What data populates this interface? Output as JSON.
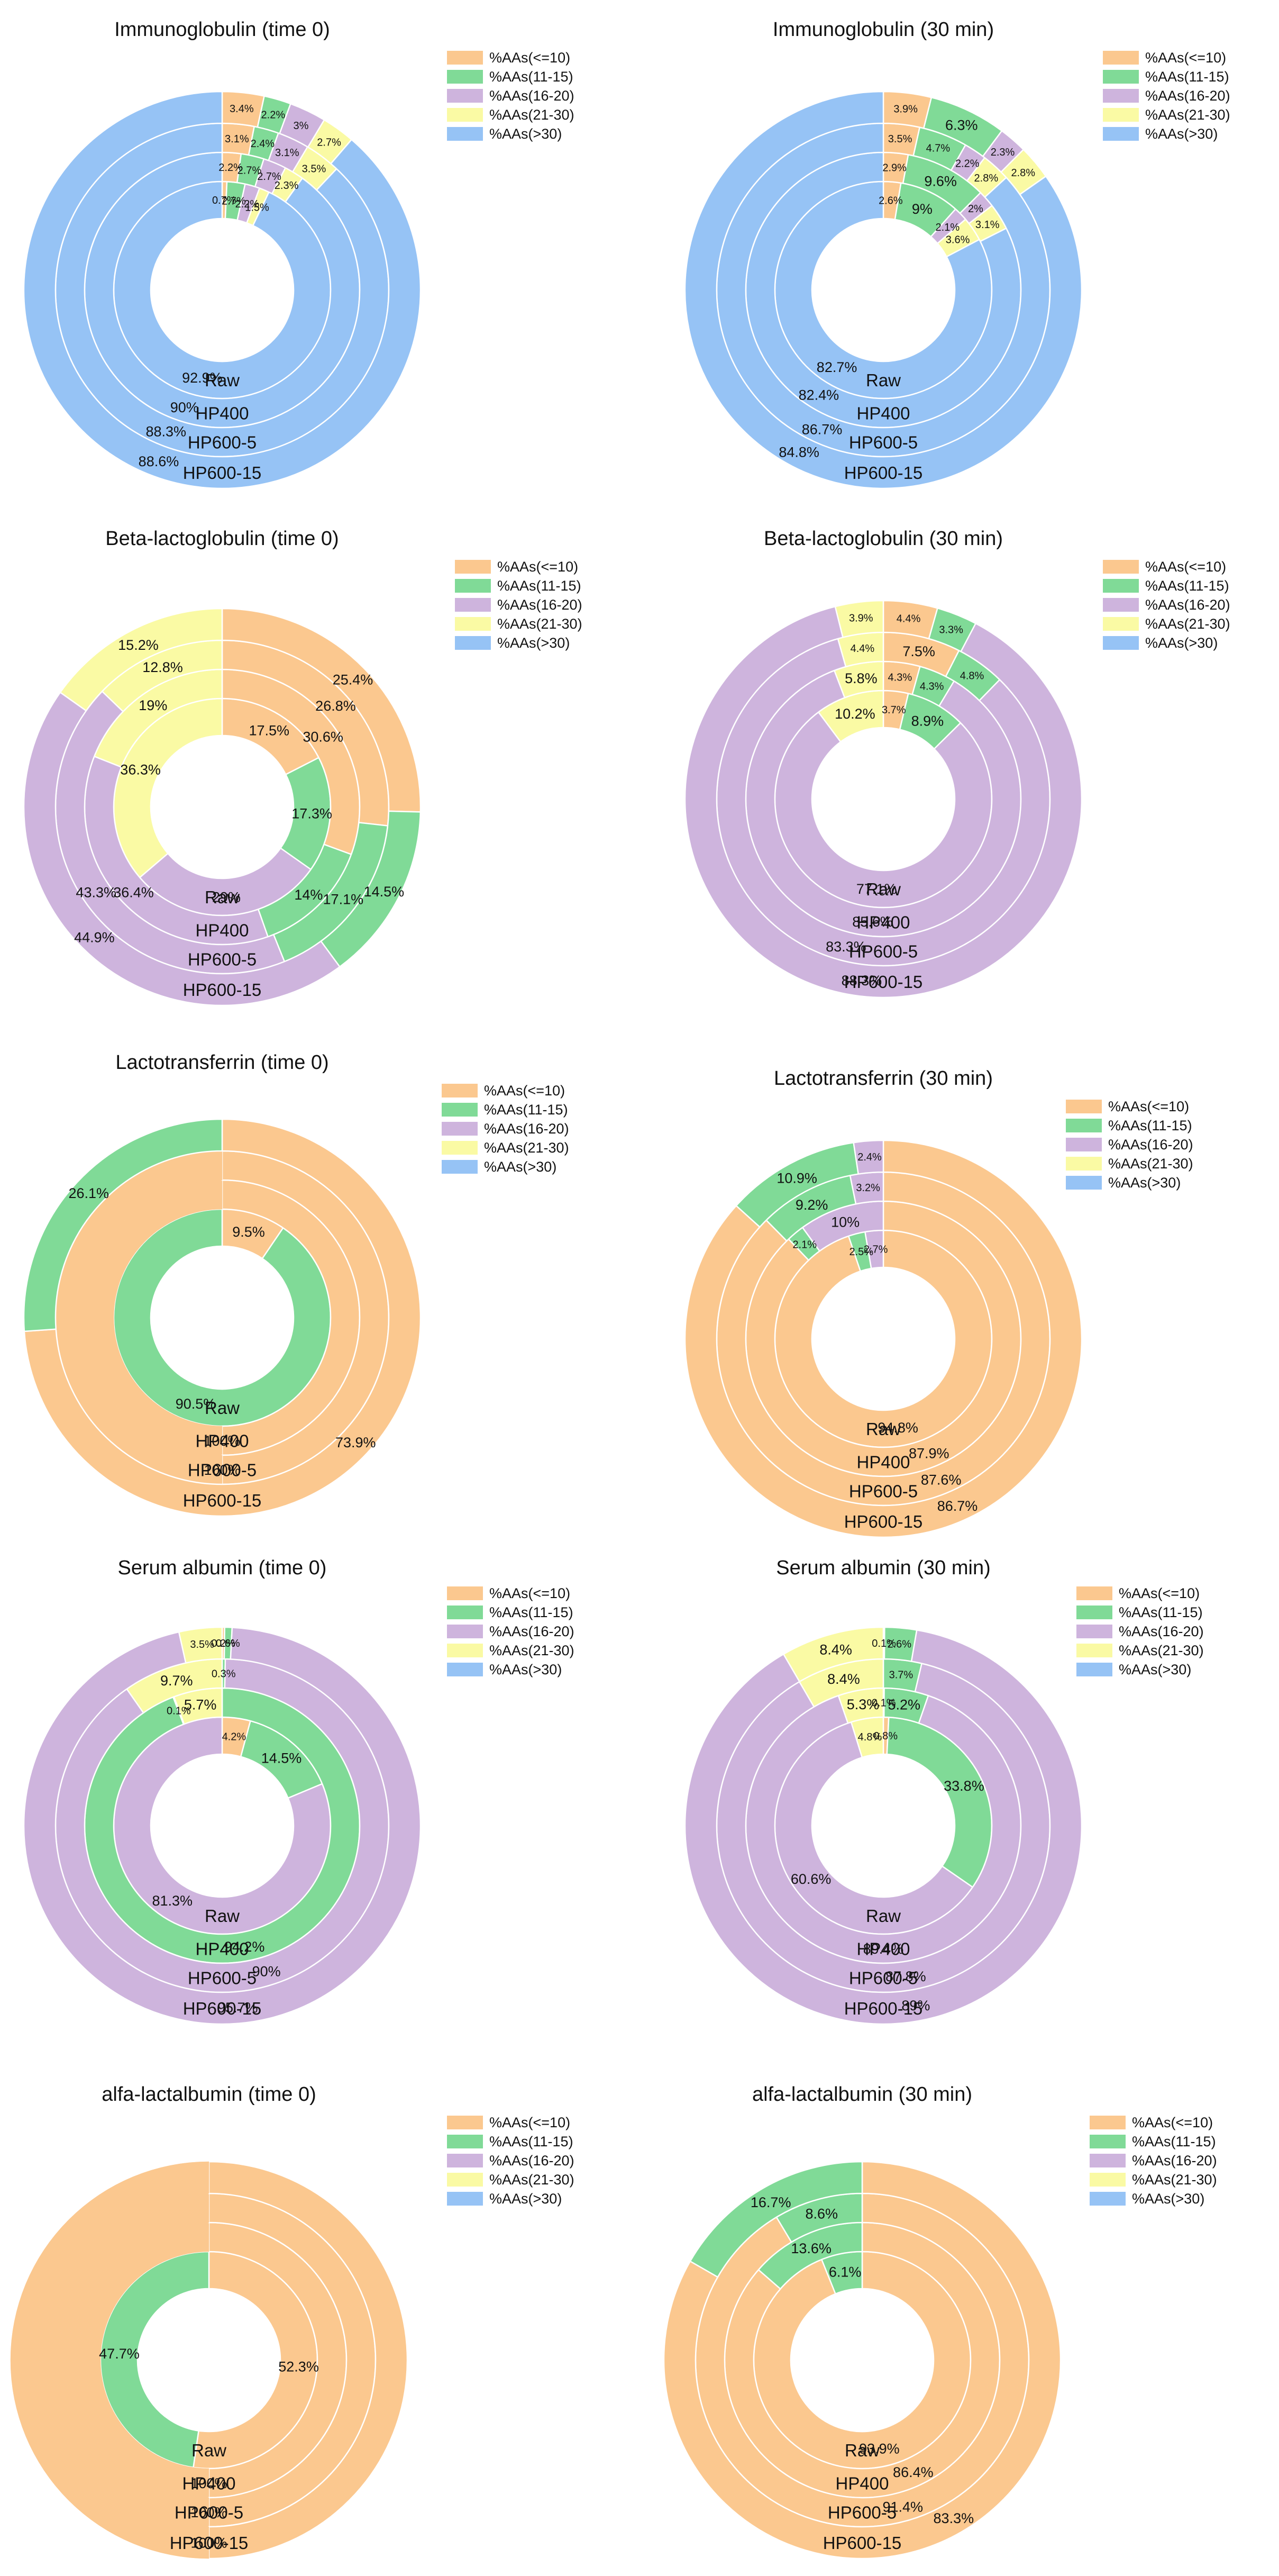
{
  "chart_data": [
    {
      "type": "pie",
      "title": "Immunoglobulin (time 0)",
      "rings": [
        "Raw",
        "HP400",
        "HP600-5",
        "HP600-15"
      ],
      "categories": [
        "%AAs(<=10)",
        "%AAs(11-15)",
        "%AAs(16-20)",
        "%AAs(21-30)",
        "%AAs(>30)"
      ],
      "series": [
        {
          "name": "Raw",
          "values": [
            0.7,
            2.7,
            2.2,
            1.5,
            92.9
          ],
          "labels": [
            "0.7%",
            "2.7%",
            "2.2%",
            "1.5%",
            "92.9%"
          ]
        },
        {
          "name": "HP400",
          "values": [
            2.2,
            2.7,
            2.7,
            2.3,
            90.0
          ],
          "labels": [
            "2.2%",
            "2.7%",
            "2.7%",
            "2.3%",
            "90%"
          ]
        },
        {
          "name": "HP600-5",
          "values": [
            3.1,
            2.4,
            3.1,
            3.5,
            88.3
          ],
          "labels": [
            "3.1%",
            "2.4%",
            "3.1%",
            "3.5%",
            "88.3%"
          ]
        },
        {
          "name": "HP600-15",
          "values": [
            3.4,
            2.2,
            3.0,
            2.7,
            88.6
          ],
          "labels": [
            "3.4%",
            "2.2%",
            "3%",
            "2.7%",
            "88.6%"
          ]
        }
      ]
    },
    {
      "type": "pie",
      "title": "Immunoglobulin (30 min)",
      "rings": [
        "Raw",
        "HP400",
        "HP600-5",
        "HP600-15"
      ],
      "categories": [
        "%AAs(<=10)",
        "%AAs(11-15)",
        "%AAs(16-20)",
        "%AAs(21-30)",
        "%AAs(>30)"
      ],
      "series": [
        {
          "name": "Raw",
          "values": [
            2.6,
            9.0,
            2.1,
            3.6,
            82.7
          ],
          "labels": [
            "2.6%",
            "9%",
            "2.1%",
            "3.6%",
            "82.7%"
          ]
        },
        {
          "name": "HP400",
          "values": [
            2.9,
            9.6,
            2.0,
            3.1,
            82.4
          ],
          "labels": [
            "2.9%",
            "9.6%",
            "2%",
            "3.1%",
            "82.4%"
          ]
        },
        {
          "name": "HP600-5",
          "values": [
            3.5,
            4.7,
            2.2,
            2.8,
            86.7
          ],
          "labels": [
            "3.5%",
            "4.7%",
            "2.2%",
            "2.8%",
            "86.7%"
          ]
        },
        {
          "name": "HP600-15",
          "values": [
            3.9,
            6.3,
            2.3,
            2.8,
            84.8
          ],
          "labels": [
            "3.9%",
            "6.3%",
            "2.3%",
            "2.8%",
            "84.8%"
          ]
        }
      ]
    },
    {
      "type": "pie",
      "title": "Beta-lactoglobulin (time 0)",
      "rings": [
        "Raw",
        "HP400",
        "HP600-5",
        "HP600-15"
      ],
      "categories": [
        "%AAs(<=10)",
        "%AAs(11-15)",
        "%AAs(16-20)",
        "%AAs(21-30)",
        "%AAs(>30)"
      ],
      "series": [
        {
          "name": "Raw",
          "values": [
            17.5,
            17.3,
            29.0,
            36.3,
            0
          ],
          "labels": [
            "17.5%",
            "17.3%",
            "29%",
            "36.3%",
            ""
          ]
        },
        {
          "name": "HP400",
          "values": [
            30.6,
            14.0,
            36.4,
            19.0,
            0
          ],
          "labels": [
            "30.6%",
            "14%",
            "36.4%",
            "19%",
            ""
          ]
        },
        {
          "name": "HP600-5",
          "values": [
            26.8,
            17.1,
            43.3,
            12.8,
            0
          ],
          "labels": [
            "26.8%",
            "17.1%",
            "43.3%",
            "12.8%",
            ""
          ]
        },
        {
          "name": "HP600-15",
          "values": [
            25.4,
            14.5,
            44.9,
            15.2,
            0
          ],
          "labels": [
            "25.4%",
            "14.5%",
            "44.9%",
            "15.2%",
            ""
          ]
        }
      ]
    },
    {
      "type": "pie",
      "title": "Beta-lactoglobulin (30 min)",
      "rings": [
        "Raw",
        "HP400",
        "HP600-5",
        "HP600-15"
      ],
      "categories": [
        "%AAs(<=10)",
        "%AAs(11-15)",
        "%AAs(16-20)",
        "%AAs(21-30)",
        "%AAs(>30)"
      ],
      "series": [
        {
          "name": "Raw",
          "values": [
            3.7,
            8.9,
            77.1,
            10.2,
            0
          ],
          "labels": [
            "3.7%",
            "8.9%",
            "77.1%",
            "10.2%",
            ""
          ]
        },
        {
          "name": "HP400",
          "values": [
            4.3,
            4.3,
            85.6,
            5.8,
            0
          ],
          "labels": [
            "4.3%",
            "4.3%",
            "85.6%",
            "5.8%",
            ""
          ]
        },
        {
          "name": "HP600-5",
          "values": [
            7.5,
            4.8,
            83.3,
            4.4,
            0
          ],
          "labels": [
            "7.5%",
            "4.8%",
            "83.3%",
            "4.4%",
            ""
          ]
        },
        {
          "name": "HP600-15",
          "values": [
            4.4,
            3.3,
            88.3,
            3.9,
            0
          ],
          "labels": [
            "4.4%",
            "3.3%",
            "88.3%",
            "3.9%",
            ""
          ]
        }
      ]
    },
    {
      "type": "pie",
      "title": "Lactotransferrin (time 0)",
      "rings": [
        "Raw",
        "HP400",
        "HP600-5",
        "HP600-15"
      ],
      "categories": [
        "%AAs(<=10)",
        "%AAs(11-15)",
        "%AAs(16-20)",
        "%AAs(21-30)",
        "%AAs(>30)"
      ],
      "series": [
        {
          "name": "Raw",
          "values": [
            9.5,
            90.5,
            0,
            0,
            0
          ],
          "labels": [
            "9.5%",
            "90.5%",
            "",
            "",
            ""
          ]
        },
        {
          "name": "HP400",
          "values": [
            100,
            0,
            0,
            0,
            0
          ],
          "labels": [
            "100%",
            "",
            "",
            "",
            ""
          ]
        },
        {
          "name": "HP600-5",
          "values": [
            100,
            0,
            0,
            0,
            0
          ],
          "labels": [
            "100%",
            "",
            "",
            "",
            ""
          ]
        },
        {
          "name": "HP600-15",
          "values": [
            73.9,
            26.1,
            0,
            0,
            0
          ],
          "labels": [
            "73.9%",
            "26.1%",
            "",
            "",
            ""
          ]
        }
      ]
    },
    {
      "type": "pie",
      "title": "Lactotransferrin (30 min)",
      "rings": [
        "Raw",
        "HP400",
        "HP600-5",
        "HP600-15"
      ],
      "categories": [
        "%AAs(<=10)",
        "%AAs(11-15)",
        "%AAs(16-20)",
        "%AAs(21-30)",
        "%AAs(>30)"
      ],
      "series": [
        {
          "name": "Raw",
          "values": [
            94.8,
            2.5,
            2.7,
            0,
            0
          ],
          "labels": [
            "94.8%",
            "2.5%",
            "2.7%",
            "",
            ""
          ]
        },
        {
          "name": "HP400",
          "values": [
            87.9,
            2.1,
            10.0,
            0,
            0
          ],
          "labels": [
            "87.9%",
            "2.1%",
            "10%",
            "",
            ""
          ]
        },
        {
          "name": "HP600-5",
          "values": [
            87.6,
            9.2,
            3.2,
            0,
            0
          ],
          "labels": [
            "87.6%",
            "9.2%",
            "3.2%",
            "",
            ""
          ]
        },
        {
          "name": "HP600-15",
          "values": [
            86.7,
            10.9,
            2.4,
            0,
            0
          ],
          "labels": [
            "86.7%",
            "10.9%",
            "2.4%",
            "",
            ""
          ]
        }
      ]
    },
    {
      "type": "pie",
      "title": "Serum albumin (time 0)",
      "rings": [
        "Raw",
        "HP400",
        "HP600-5",
        "HP600-15"
      ],
      "categories": [
        "%AAs(<=10)",
        "%AAs(11-15)",
        "%AAs(16-20)",
        "%AAs(21-30)",
        "%AAs(>30)"
      ],
      "series": [
        {
          "name": "Raw",
          "values": [
            4.2,
            14.5,
            81.3,
            0,
            0
          ],
          "labels": [
            "4.2%",
            "14.5%",
            "81.3%",
            "",
            ""
          ]
        },
        {
          "name": "HP400",
          "values": [
            0,
            94.2,
            0.1,
            5.7,
            0
          ],
          "labels": [
            "",
            "94.2%",
            "0.1%",
            "5.7%",
            ""
          ]
        },
        {
          "name": "HP600-5",
          "values": [
            0,
            0.3,
            90.0,
            9.7,
            0
          ],
          "labels": [
            "",
            "0.3%",
            "90%",
            "9.7%",
            ""
          ]
        },
        {
          "name": "HP600-15",
          "values": [
            0.2,
            0.6,
            95.7,
            3.5,
            0
          ],
          "labels": [
            "0.2%",
            "0.6%",
            "95.7%",
            "3.5%",
            ""
          ]
        }
      ]
    },
    {
      "type": "pie",
      "title": "Serum albumin (30 min)",
      "rings": [
        "Raw",
        "HP400",
        "HP600-5",
        "HP600-15"
      ],
      "categories": [
        "%AAs(<=10)",
        "%AAs(11-15)",
        "%AAs(16-20)",
        "%AAs(21-30)",
        "%AAs(>30)"
      ],
      "series": [
        {
          "name": "Raw",
          "values": [
            0.8,
            33.8,
            60.6,
            4.8,
            0
          ],
          "labels": [
            "0.8%",
            "33.8%",
            "60.6%",
            "4.8%",
            ""
          ]
        },
        {
          "name": "HP400",
          "values": [
            0.1,
            5.2,
            89.4,
            5.3,
            0
          ],
          "labels": [
            "0.1%",
            "5.2%",
            "89.4%",
            "5.3%",
            ""
          ]
        },
        {
          "name": "HP600-5",
          "values": [
            0,
            3.7,
            87.8,
            8.4,
            0
          ],
          "labels": [
            "",
            "3.7%",
            "87.8%",
            "8.4%",
            ""
          ]
        },
        {
          "name": "HP600-15",
          "values": [
            0.1,
            2.6,
            89.0,
            8.4,
            0
          ],
          "labels": [
            "0.1%",
            "2.6%",
            "89%",
            "8.4%",
            ""
          ]
        }
      ]
    },
    {
      "type": "pie",
      "title": "alfa-lactalbumin (time 0)",
      "rings": [
        "Raw",
        "HP400",
        "HP600-5",
        "HP600-15"
      ],
      "categories": [
        "%AAs(<=10)",
        "%AAs(11-15)",
        "%AAs(16-20)",
        "%AAs(21-30)",
        "%AAs(>30)"
      ],
      "series": [
        {
          "name": "Raw",
          "values": [
            52.3,
            47.7,
            0,
            0,
            0
          ],
          "labels": [
            "52.3%",
            "47.7%",
            "",
            "",
            ""
          ]
        },
        {
          "name": "HP400",
          "values": [
            100,
            0,
            0,
            0,
            0
          ],
          "labels": [
            "100%",
            "",
            "",
            "",
            ""
          ]
        },
        {
          "name": "HP600-5",
          "values": [
            100,
            0,
            0,
            0,
            0
          ],
          "labels": [
            "100%",
            "",
            "",
            "",
            ""
          ]
        },
        {
          "name": "HP600-15",
          "values": [
            100,
            0,
            0,
            0,
            0
          ],
          "labels": [
            "100%",
            "",
            "",
            "",
            ""
          ]
        }
      ]
    },
    {
      "type": "pie",
      "title": "alfa-lactalbumin (30 min)",
      "rings": [
        "Raw",
        "HP400",
        "HP600-5",
        "HP600-15"
      ],
      "categories": [
        "%AAs(<=10)",
        "%AAs(11-15)",
        "%AAs(16-20)",
        "%AAs(21-30)",
        "%AAs(>30)"
      ],
      "series": [
        {
          "name": "Raw",
          "values": [
            93.9,
            6.1,
            0,
            0,
            0
          ],
          "labels": [
            "93.9%",
            "6.1%",
            "",
            "",
            ""
          ]
        },
        {
          "name": "HP400",
          "values": [
            86.4,
            13.6,
            0,
            0,
            0
          ],
          "labels": [
            "86.4%",
            "13.6%",
            "",
            "",
            ""
          ]
        },
        {
          "name": "HP600-5",
          "values": [
            91.4,
            8.6,
            0,
            0,
            0
          ],
          "labels": [
            "91.4%",
            "8.6%",
            "",
            "",
            ""
          ]
        },
        {
          "name": "HP600-15",
          "values": [
            83.3,
            16.7,
            0,
            0,
            0
          ],
          "labels": [
            "83.3%",
            "16.7%",
            "",
            "",
            ""
          ]
        }
      ]
    }
  ],
  "legend": {
    "placement": "top-right",
    "items": [
      {
        "label": "%AAs(<=10)",
        "color": "#FBC88F"
      },
      {
        "label": "%AAs(11-15)",
        "color": "#80DA97"
      },
      {
        "label": "%AAs(16-20)",
        "color": "#CEB4DD"
      },
      {
        "label": "%AAs(21-30)",
        "color": "#FAFAA4"
      },
      {
        "label": "%AAs(>30)",
        "color": "#96C3F5"
      }
    ]
  }
}
